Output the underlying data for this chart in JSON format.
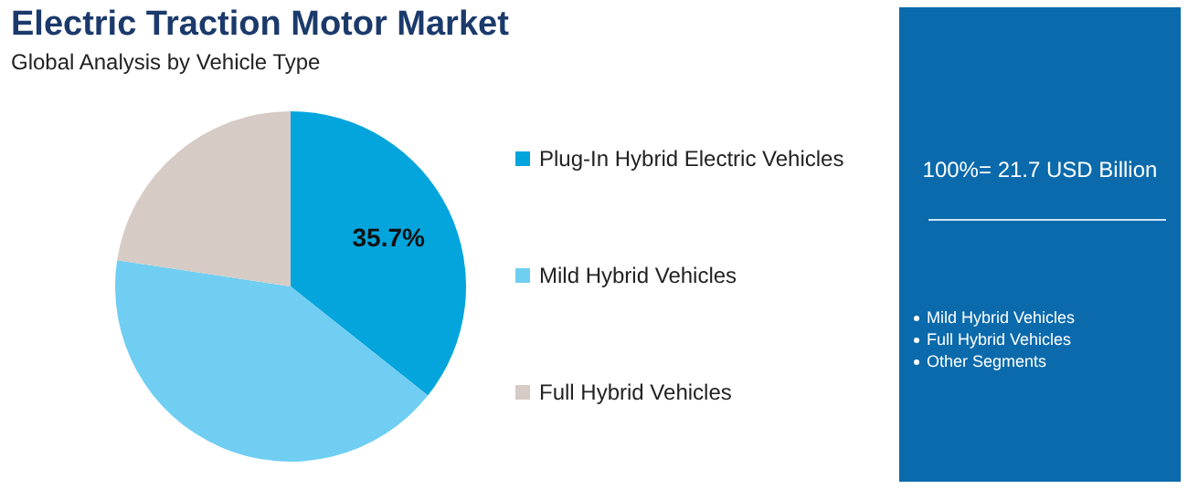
{
  "chart_data": {
    "type": "pie",
    "title": "Electric Traction Motor Market",
    "subtitle": "Global Analysis by Vehicle Type",
    "categories": [
      "Plug-In Hybrid Electric Vehicles",
      "Mild Hybrid Vehicles",
      "Full Hybrid Vehicles"
    ],
    "values": [
      35.7,
      41.7,
      22.6
    ],
    "colors": [
      "#04a5dc",
      "#6fcef2",
      "#d6cbc5"
    ],
    "value_labels": [
      "35.7%",
      null,
      null
    ],
    "legend": "right",
    "annotations": [
      "100%= 21.7 USD Billion",
      "Mild Hybrid Vehicles",
      "Full Hybrid Vehicles",
      "Other Segments"
    ]
  }
}
